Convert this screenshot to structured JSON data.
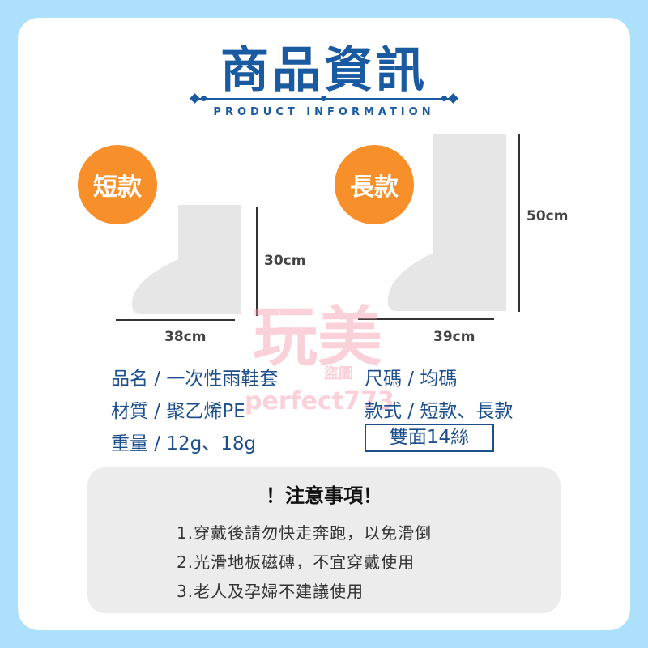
{
  "header": {
    "title": "商品資訊",
    "subtitle": "PRODUCT INFORMATION"
  },
  "styles": {
    "short": {
      "label": "短款",
      "height": "30cm",
      "width": "38cm"
    },
    "long": {
      "label": "長款",
      "height": "50cm",
      "width": "39cm"
    }
  },
  "specs": [
    {
      "label": "品名 /",
      "value": "一次性雨鞋套"
    },
    {
      "label": "材質 /",
      "value": "聚乙烯PE"
    },
    {
      "label": "重量 /",
      "value": "12g、18g"
    },
    {
      "label": "尺碼 /",
      "value": "均碼"
    },
    {
      "label": "款式 /",
      "value": "短款、長款"
    }
  ],
  "thickness_badge": "雙面14絲",
  "notes": {
    "title": "！注意事項！",
    "items": [
      "1.穿戴後請勿快走奔跑，以免滑倒",
      "2.光滑地板磁磚，不宜穿戴使用",
      "3.老人及孕婦不建議使用"
    ]
  },
  "watermark": {
    "main": "玩美",
    "small": "盜圖",
    "id": "perfect773"
  },
  "colors": {
    "brand": "#1a5aa0",
    "accent": "#f7902b",
    "background": "#ade0fa"
  }
}
